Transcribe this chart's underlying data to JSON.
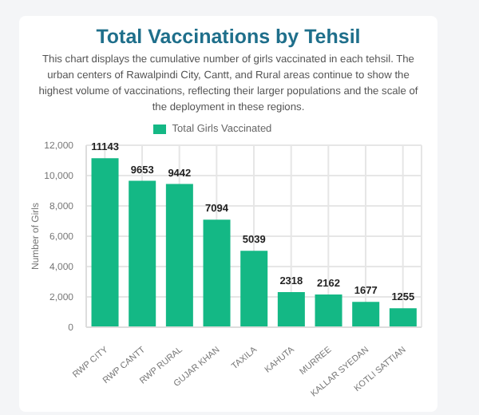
{
  "chart_data": {
    "type": "bar",
    "title": "Total Vaccinations by Tehsil",
    "subtitle": "This chart displays the cumulative number of girls vaccinated in each tehsil. The urban centers of Rawalpindi City, Cantt, and Rural areas continue to show the highest volume of vaccinations, reflecting their larger populations and the scale of the deployment in these regions.",
    "ylabel": "Number of Girls",
    "categories": [
      "RWP CITY",
      "RWP CANTT",
      "RWP RURAL",
      "GUJAR KHAN",
      "TAXILA",
      "KAHUTA",
      "MURREE",
      "KALLAR SYEDAN",
      "KOTLI SATTIAN"
    ],
    "series": [
      {
        "name": "Total Girls Vaccinated",
        "color": "#14b885",
        "values": [
          11143,
          9653,
          9442,
          7094,
          5039,
          2318,
          2162,
          1677,
          1255
        ]
      }
    ],
    "ylim": [
      0,
      12000
    ],
    "yticks": [
      {
        "value": 0,
        "label": "0"
      },
      {
        "value": 2000,
        "label": "2,000"
      },
      {
        "value": 4000,
        "label": "4,000"
      },
      {
        "value": 6000,
        "label": "6,000"
      },
      {
        "value": 8000,
        "label": "8,000"
      },
      {
        "value": 10000,
        "label": "10,000"
      },
      {
        "value": 12000,
        "label": "12,000"
      }
    ],
    "grid": true,
    "legend": "top",
    "data_labels": true
  }
}
